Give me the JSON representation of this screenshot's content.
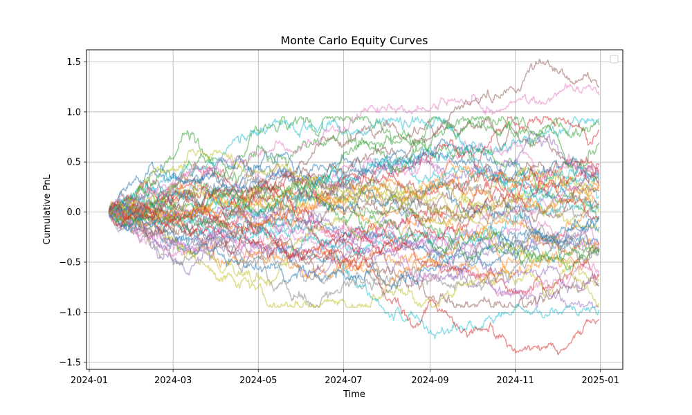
{
  "chart_data": {
    "type": "line",
    "title": "Monte Carlo Equity Curves",
    "xlabel": "Time",
    "ylabel": "Cumulative PnL",
    "x_range": [
      "2024-01-15",
      "2024-12-31"
    ],
    "xlim": [
      "2023-12-30",
      "2025-01-17"
    ],
    "ylim": [
      -1.57,
      1.62
    ],
    "x_ticks": [
      "2024-01",
      "2024-03",
      "2024-05",
      "2024-07",
      "2024-09",
      "2024-11",
      "2025-01"
    ],
    "y_ticks": [
      -1.5,
      -1.0,
      -0.5,
      0.0,
      0.5,
      1.0,
      1.5
    ],
    "grid": true,
    "legend": "top-right (empty)",
    "series_count": 50,
    "palette": [
      "#1f77b4",
      "#ff7f0e",
      "#2ca02c",
      "#d62728",
      "#9467bd",
      "#8c564b",
      "#e377c2",
      "#7f7f7f",
      "#bcbd22",
      "#17becf"
    ],
    "line_opacity": 0.5,
    "notable_series": [
      {
        "color": "#e377c2",
        "points": [
          [
            "2024-01-15",
            0.0
          ],
          [
            "2024-04-15",
            0.5
          ],
          [
            "2024-07-15",
            0.95
          ],
          [
            "2024-10-01",
            1.0
          ],
          [
            "2024-12-31",
            1.2
          ]
        ]
      },
      {
        "color": "#8c564b",
        "points": [
          [
            "2024-01-15",
            0.0
          ],
          [
            "2024-08-15",
            0.65
          ],
          [
            "2024-10-15",
            1.15
          ],
          [
            "2024-11-25",
            1.47
          ],
          [
            "2024-12-31",
            1.22
          ]
        ]
      },
      {
        "color": "#17becf",
        "points": [
          [
            "2024-01-15",
            0.0
          ],
          [
            "2024-06-15",
            -0.35
          ],
          [
            "2024-08-20",
            -1.1
          ],
          [
            "2024-09-05",
            -1.2
          ],
          [
            "2024-11-10",
            -0.9
          ],
          [
            "2024-12-31",
            -0.96
          ]
        ]
      },
      {
        "color": "#d62728",
        "points": [
          [
            "2024-01-15",
            0.0
          ],
          [
            "2024-07-15",
            -0.55
          ],
          [
            "2024-08-20",
            -1.1
          ],
          [
            "2024-09-01",
            -0.88
          ],
          [
            "2024-09-25",
            -1.2
          ],
          [
            "2024-11-15",
            -1.42
          ],
          [
            "2024-12-31",
            -1.08
          ]
        ]
      },
      {
        "color": "#1f77b4",
        "points": [
          [
            "2024-01-15",
            0.0
          ],
          [
            "2024-04-15",
            -0.5
          ],
          [
            "2024-06-01",
            -0.6
          ],
          [
            "2024-08-01",
            -0.65
          ],
          [
            "2024-10-15",
            -0.3
          ],
          [
            "2024-12-31",
            -0.1
          ]
        ]
      },
      {
        "color": "#bcbd22",
        "points": [
          [
            "2024-01-15",
            0.0
          ],
          [
            "2024-04-01",
            0.6
          ],
          [
            "2024-09-01",
            0.1
          ],
          [
            "2024-12-31",
            -0.85
          ]
        ]
      }
    ]
  }
}
